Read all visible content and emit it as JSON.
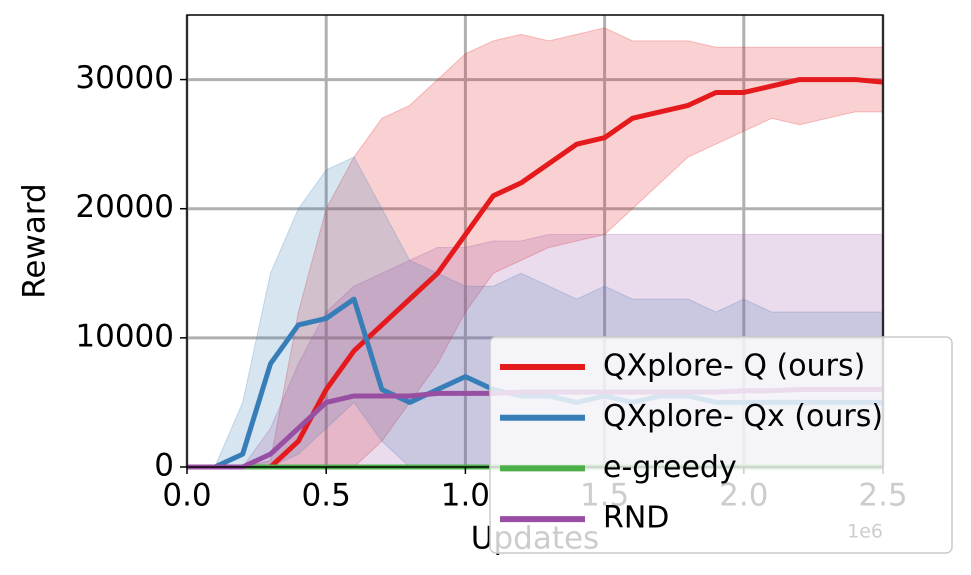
{
  "chart_data": {
    "type": "line",
    "x_label": "Updates",
    "y_label": "Reward",
    "x_offset_label": "1e6",
    "xlim": [
      0,
      2.5
    ],
    "ylim": [
      0,
      35000
    ],
    "xticks": [
      {
        "value": 0,
        "label": "0.0"
      },
      {
        "value": 0.5,
        "label": "0.5"
      },
      {
        "value": 1,
        "label": "1.0"
      },
      {
        "value": 1.5,
        "label": "1.5"
      },
      {
        "value": 2,
        "label": "2.0"
      },
      {
        "value": 2.5,
        "label": "2.5"
      }
    ],
    "yticks": [
      0,
      10000,
      20000,
      30000
    ],
    "grid": true,
    "legend": "lower right",
    "x": [
      0,
      0.1,
      0.2,
      0.3,
      0.4,
      0.5,
      0.6,
      0.7,
      0.8,
      0.9,
      1.0,
      1.1,
      1.2,
      1.3,
      1.4,
      1.5,
      1.6,
      1.7,
      1.8,
      1.9,
      2.0,
      2.1,
      2.2,
      2.3,
      2.4,
      2.5
    ],
    "series": [
      {
        "name": "QXplore- Q (ours)",
        "color": "#e41a1c",
        "values": [
          0,
          0,
          0,
          0,
          2000,
          6000,
          9000,
          11000,
          13000,
          15000,
          18000,
          21000,
          22000,
          23500,
          25000,
          25500,
          27000,
          27500,
          28000,
          29000,
          29000,
          29500,
          30000,
          30000,
          30000,
          29800
        ],
        "upper": [
          0,
          0,
          0,
          500,
          12000,
          20000,
          24000,
          27000,
          28000,
          30000,
          32000,
          33000,
          33500,
          33000,
          33500,
          34000,
          33000,
          33000,
          33000,
          32500,
          32500,
          32500,
          32500,
          32500,
          32500,
          32500
        ],
        "lower": [
          0,
          0,
          0,
          0,
          0,
          0,
          0,
          2000,
          5000,
          8000,
          12000,
          15000,
          16000,
          17000,
          17500,
          18000,
          20000,
          22000,
          24000,
          25000,
          26000,
          27000,
          26500,
          27000,
          27500,
          27500
        ]
      },
      {
        "name": "QXplore- Qx (ours)",
        "color": "#377eb8",
        "values": [
          0,
          0,
          1000,
          8000,
          11000,
          11500,
          13000,
          6000,
          5000,
          6000,
          7000,
          6000,
          5500,
          5500,
          5000,
          5500,
          5000,
          5500,
          5500,
          5000,
          5000,
          5000,
          5000,
          5000,
          5000,
          5000
        ],
        "upper": [
          0,
          0,
          5000,
          15000,
          20000,
          23000,
          24000,
          20000,
          16000,
          15000,
          14000,
          14000,
          15000,
          14000,
          13000,
          14000,
          13000,
          13000,
          13000,
          12000,
          13000,
          12000,
          12000,
          12000,
          12000,
          12000
        ],
        "lower": [
          0,
          0,
          0,
          0,
          1000,
          3000,
          5000,
          2000,
          0,
          0,
          0,
          0,
          0,
          0,
          0,
          0,
          0,
          0,
          0,
          0,
          0,
          0,
          0,
          0,
          0,
          0
        ]
      },
      {
        "name": "e-greedy",
        "color": "#4daf4a",
        "values": [
          0,
          0,
          0,
          0,
          0,
          0,
          0,
          0,
          0,
          0,
          0,
          0,
          0,
          0,
          0,
          0,
          0,
          0,
          0,
          0,
          0,
          0,
          0,
          0,
          0,
          0
        ]
      },
      {
        "name": "RND",
        "color": "#984ea3",
        "values": [
          0,
          0,
          0,
          1000,
          3000,
          5000,
          5500,
          5500,
          5500,
          5700,
          5700,
          5700,
          5800,
          5800,
          5800,
          5800,
          5800,
          5800,
          5800,
          5800,
          5900,
          5900,
          6000,
          6000,
          6000,
          6000
        ],
        "upper": [
          0,
          0,
          0,
          3000,
          8000,
          12000,
          14000,
          15000,
          16000,
          17000,
          17000,
          17500,
          17500,
          18000,
          18000,
          18000,
          18000,
          18000,
          18000,
          18000,
          18000,
          18000,
          18000,
          18000,
          18000,
          18000
        ],
        "lower": [
          0,
          0,
          0,
          0,
          0,
          0,
          0,
          0,
          0,
          0,
          0,
          0,
          0,
          0,
          0,
          0,
          0,
          0,
          0,
          0,
          0,
          0,
          0,
          0,
          0,
          0
        ]
      }
    ]
  }
}
